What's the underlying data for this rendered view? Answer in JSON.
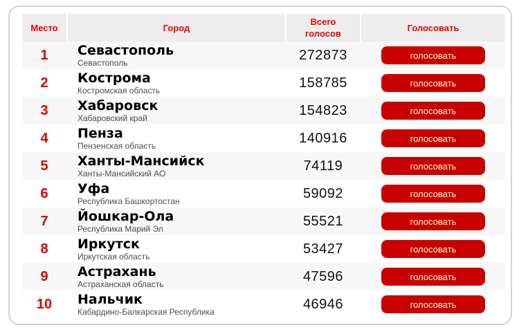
{
  "table": {
    "headers": {
      "place": "Место",
      "city": "Город",
      "votes": "Всего голосов",
      "vote": "Голосовать"
    },
    "vote_button_label": "голосовать",
    "rows": [
      {
        "rank": "1",
        "city": "Севастополь",
        "region": "Севастополь",
        "votes": "272873"
      },
      {
        "rank": "2",
        "city": "Кострома",
        "region": "Костромская область",
        "votes": "158785"
      },
      {
        "rank": "3",
        "city": "Хабаровск",
        "region": "Хабаровский край",
        "votes": "154823"
      },
      {
        "rank": "4",
        "city": "Пенза",
        "region": "Пензенская область",
        "votes": "140916"
      },
      {
        "rank": "5",
        "city": "Ханты-Мансийск",
        "region": "Ханты-Мансийский АО",
        "votes": "74119"
      },
      {
        "rank": "6",
        "city": "Уфа",
        "region": "Республика Башкортостан",
        "votes": "59092"
      },
      {
        "rank": "7",
        "city": "Йошкар-Ола",
        "region": "Республика Марий Эл",
        "votes": "55521"
      },
      {
        "rank": "8",
        "city": "Иркутск",
        "region": "Иркутская область",
        "votes": "53427"
      },
      {
        "rank": "9",
        "city": "Астрахань",
        "region": "Астраханская область",
        "votes": "47596"
      },
      {
        "rank": "10",
        "city": "Нальчик",
        "region": "Кабардино-Балкарская Республика",
        "votes": "46946"
      }
    ]
  },
  "colors": {
    "accent_red": "#ee0000",
    "rank_red": "#dd0000",
    "button_red": "#c90000",
    "button_text": "#ffffcc",
    "header_bg": "#ededed",
    "row_alt_bg": "#f7f7f7",
    "border": "#d3d3d3"
  }
}
